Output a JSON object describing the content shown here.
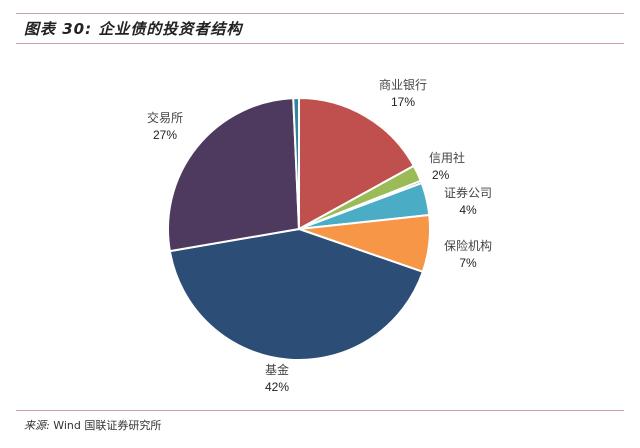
{
  "figure": {
    "title": "图表 30:  企业债的投资者结构",
    "source_label": "来源:",
    "source_text": "Wind 国联证券研究所"
  },
  "colors": {
    "rule": "#c9a0ae"
  },
  "chart_data": {
    "type": "pie",
    "title": "企业债的投资者结构",
    "start_angle_deg": 0,
    "direction": "clockwise",
    "slices": [
      {
        "label": "商业银行",
        "value": 17,
        "display": "17%",
        "color": "#c0504d"
      },
      {
        "label": "信用社",
        "value": 2,
        "display": "2%",
        "color": "#9bbb59"
      },
      {
        "label": "",
        "value": 0.3,
        "display": "",
        "color": "#5f497a"
      },
      {
        "label": "证券公司",
        "value": 4,
        "display": "4%",
        "color": "#4bacc6"
      },
      {
        "label": "保险机构",
        "value": 7,
        "display": "7%",
        "color": "#f79646"
      },
      {
        "label": "基金",
        "value": 42,
        "display": "42%",
        "color": "#2c4d75"
      },
      {
        "label": "交易所",
        "value": 27,
        "display": "27%",
        "color": "#4f3a5f"
      },
      {
        "label": "",
        "value": 0.7,
        "display": "",
        "color": "#31849b"
      }
    ],
    "center": [
      299,
      229
    ],
    "radius": 131
  }
}
